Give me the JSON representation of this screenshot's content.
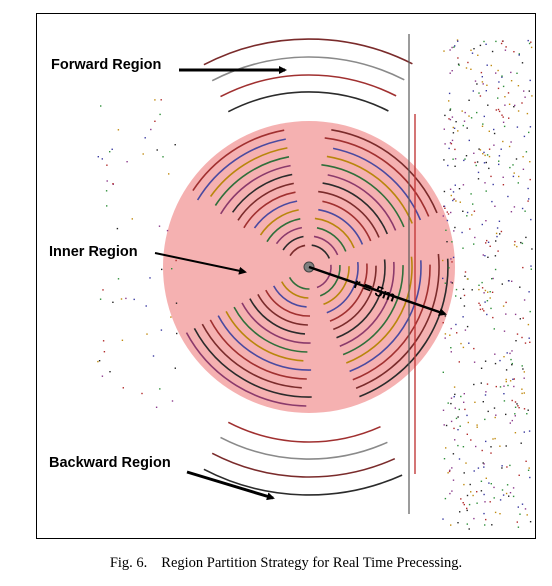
{
  "figure": {
    "labels": {
      "forward": "Forward Region",
      "inner": "Inner Region",
      "backward": "Backward Region",
      "radius": "r = 5m"
    },
    "colors": {
      "inner_region_fill": "#f3a3a3",
      "arrow": "#000000",
      "center_point": "#808080"
    }
  },
  "caption": {
    "number": "Fig. 6.",
    "text": "Region Partition Strategy for Real Time Precessing."
  }
}
